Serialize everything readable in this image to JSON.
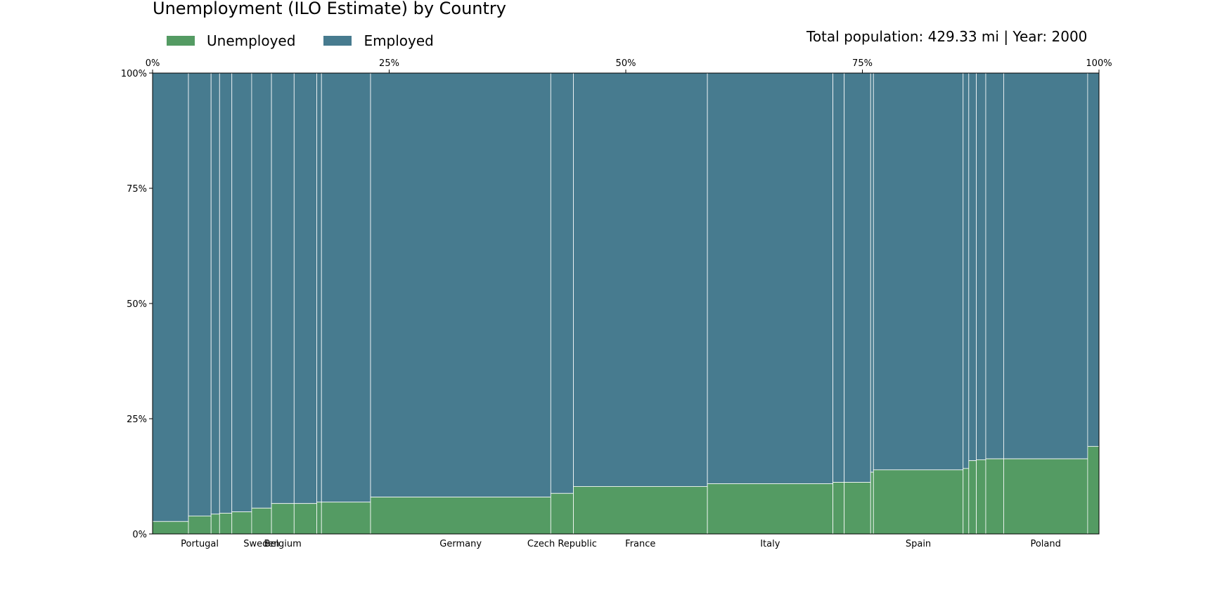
{
  "chart_data": {
    "type": "mosaic",
    "title": "Unemployment (ILO Estimate) by Country",
    "info": "Total population: 429.33 mi | Year: 2000",
    "legend": [
      {
        "name": "Unemployed",
        "color": "#549b63"
      },
      {
        "name": "Employed",
        "color": "#477b8f"
      }
    ],
    "x_ticks": [
      "0%",
      "25%",
      "50%",
      "75%",
      "100%"
    ],
    "y_ticks": [
      "0%",
      "25%",
      "50%",
      "75%",
      "100%"
    ],
    "xlim": [
      0,
      100
    ],
    "ylim": [
      0,
      100
    ],
    "countries": [
      {
        "name": "",
        "width": 3.8,
        "unemployed": 2.7
      },
      {
        "name": "Portugal",
        "width": 2.4,
        "unemployed": 3.9
      },
      {
        "name": "",
        "width": 0.9,
        "unemployed": 4.3
      },
      {
        "name": "",
        "width": 1.3,
        "unemployed": 4.5
      },
      {
        "name": "",
        "width": 2.1,
        "unemployed": 4.8
      },
      {
        "name": "Sweden",
        "width": 2.1,
        "unemployed": 5.6
      },
      {
        "name": "Belgium",
        "width": 2.4,
        "unemployed": 6.6
      },
      {
        "name": "",
        "width": 2.4,
        "unemployed": 6.6
      },
      {
        "name": "",
        "width": 0.5,
        "unemployed": 6.9
      },
      {
        "name": "",
        "width": 5.2,
        "unemployed": 6.9
      },
      {
        "name": "Germany",
        "width": 19.1,
        "unemployed": 8.0
      },
      {
        "name": "Czech Republic",
        "width": 2.4,
        "unemployed": 8.8
      },
      {
        "name": "France",
        "width": 14.2,
        "unemployed": 10.3
      },
      {
        "name": "Italy",
        "width": 13.3,
        "unemployed": 10.9
      },
      {
        "name": "",
        "width": 1.2,
        "unemployed": 11.2
      },
      {
        "name": "",
        "width": 2.8,
        "unemployed": 11.2
      },
      {
        "name": "",
        "width": 0.3,
        "unemployed": 13.4
      },
      {
        "name": "Spain",
        "width": 9.5,
        "unemployed": 13.9
      },
      {
        "name": "",
        "width": 0.6,
        "unemployed": 14.2
      },
      {
        "name": "",
        "width": 0.8,
        "unemployed": 15.9
      },
      {
        "name": "",
        "width": 1.0,
        "unemployed": 16.1
      },
      {
        "name": "",
        "width": 1.9,
        "unemployed": 16.3
      },
      {
        "name": "Poland",
        "width": 8.9,
        "unemployed": 16.3
      },
      {
        "name": "",
        "width": 1.2,
        "unemployed": 19.0
      }
    ]
  }
}
